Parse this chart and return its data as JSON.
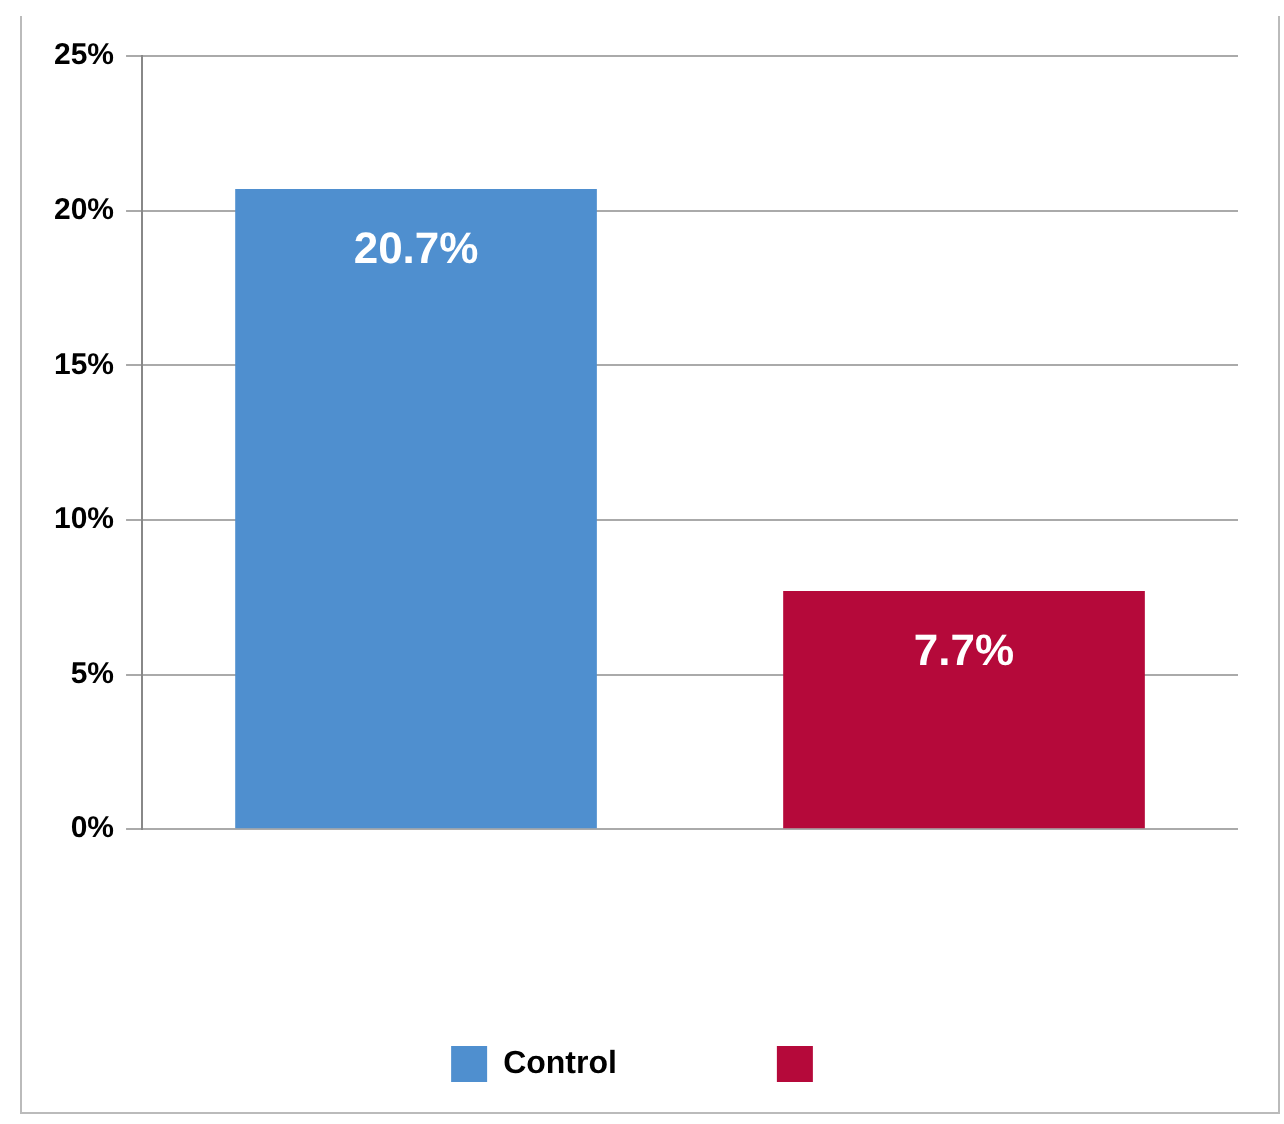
{
  "chart_data": {
    "type": "bar",
    "categories": [
      null,
      null
    ],
    "series": [
      {
        "name": "Control",
        "color": "#4f8fcf",
        "values": [
          20.7,
          null
        ],
        "value_labels": [
          "20.7%",
          null
        ]
      },
      {
        "color": "#b5093a",
        "values": [
          null,
          7.7
        ],
        "value_labels": [
          null,
          "7.7%"
        ]
      }
    ],
    "ylim": [
      0,
      25
    ],
    "yticks": [
      {
        "value": 0,
        "label": "0%"
      },
      {
        "value": 5,
        "label": "5%"
      },
      {
        "value": 10,
        "label": "10%"
      },
      {
        "value": 15,
        "label": "15%"
      },
      {
        "value": 20,
        "label": "20%"
      },
      {
        "value": 25,
        "label": "25%"
      }
    ],
    "grid": "y",
    "legend": "bottom"
  }
}
